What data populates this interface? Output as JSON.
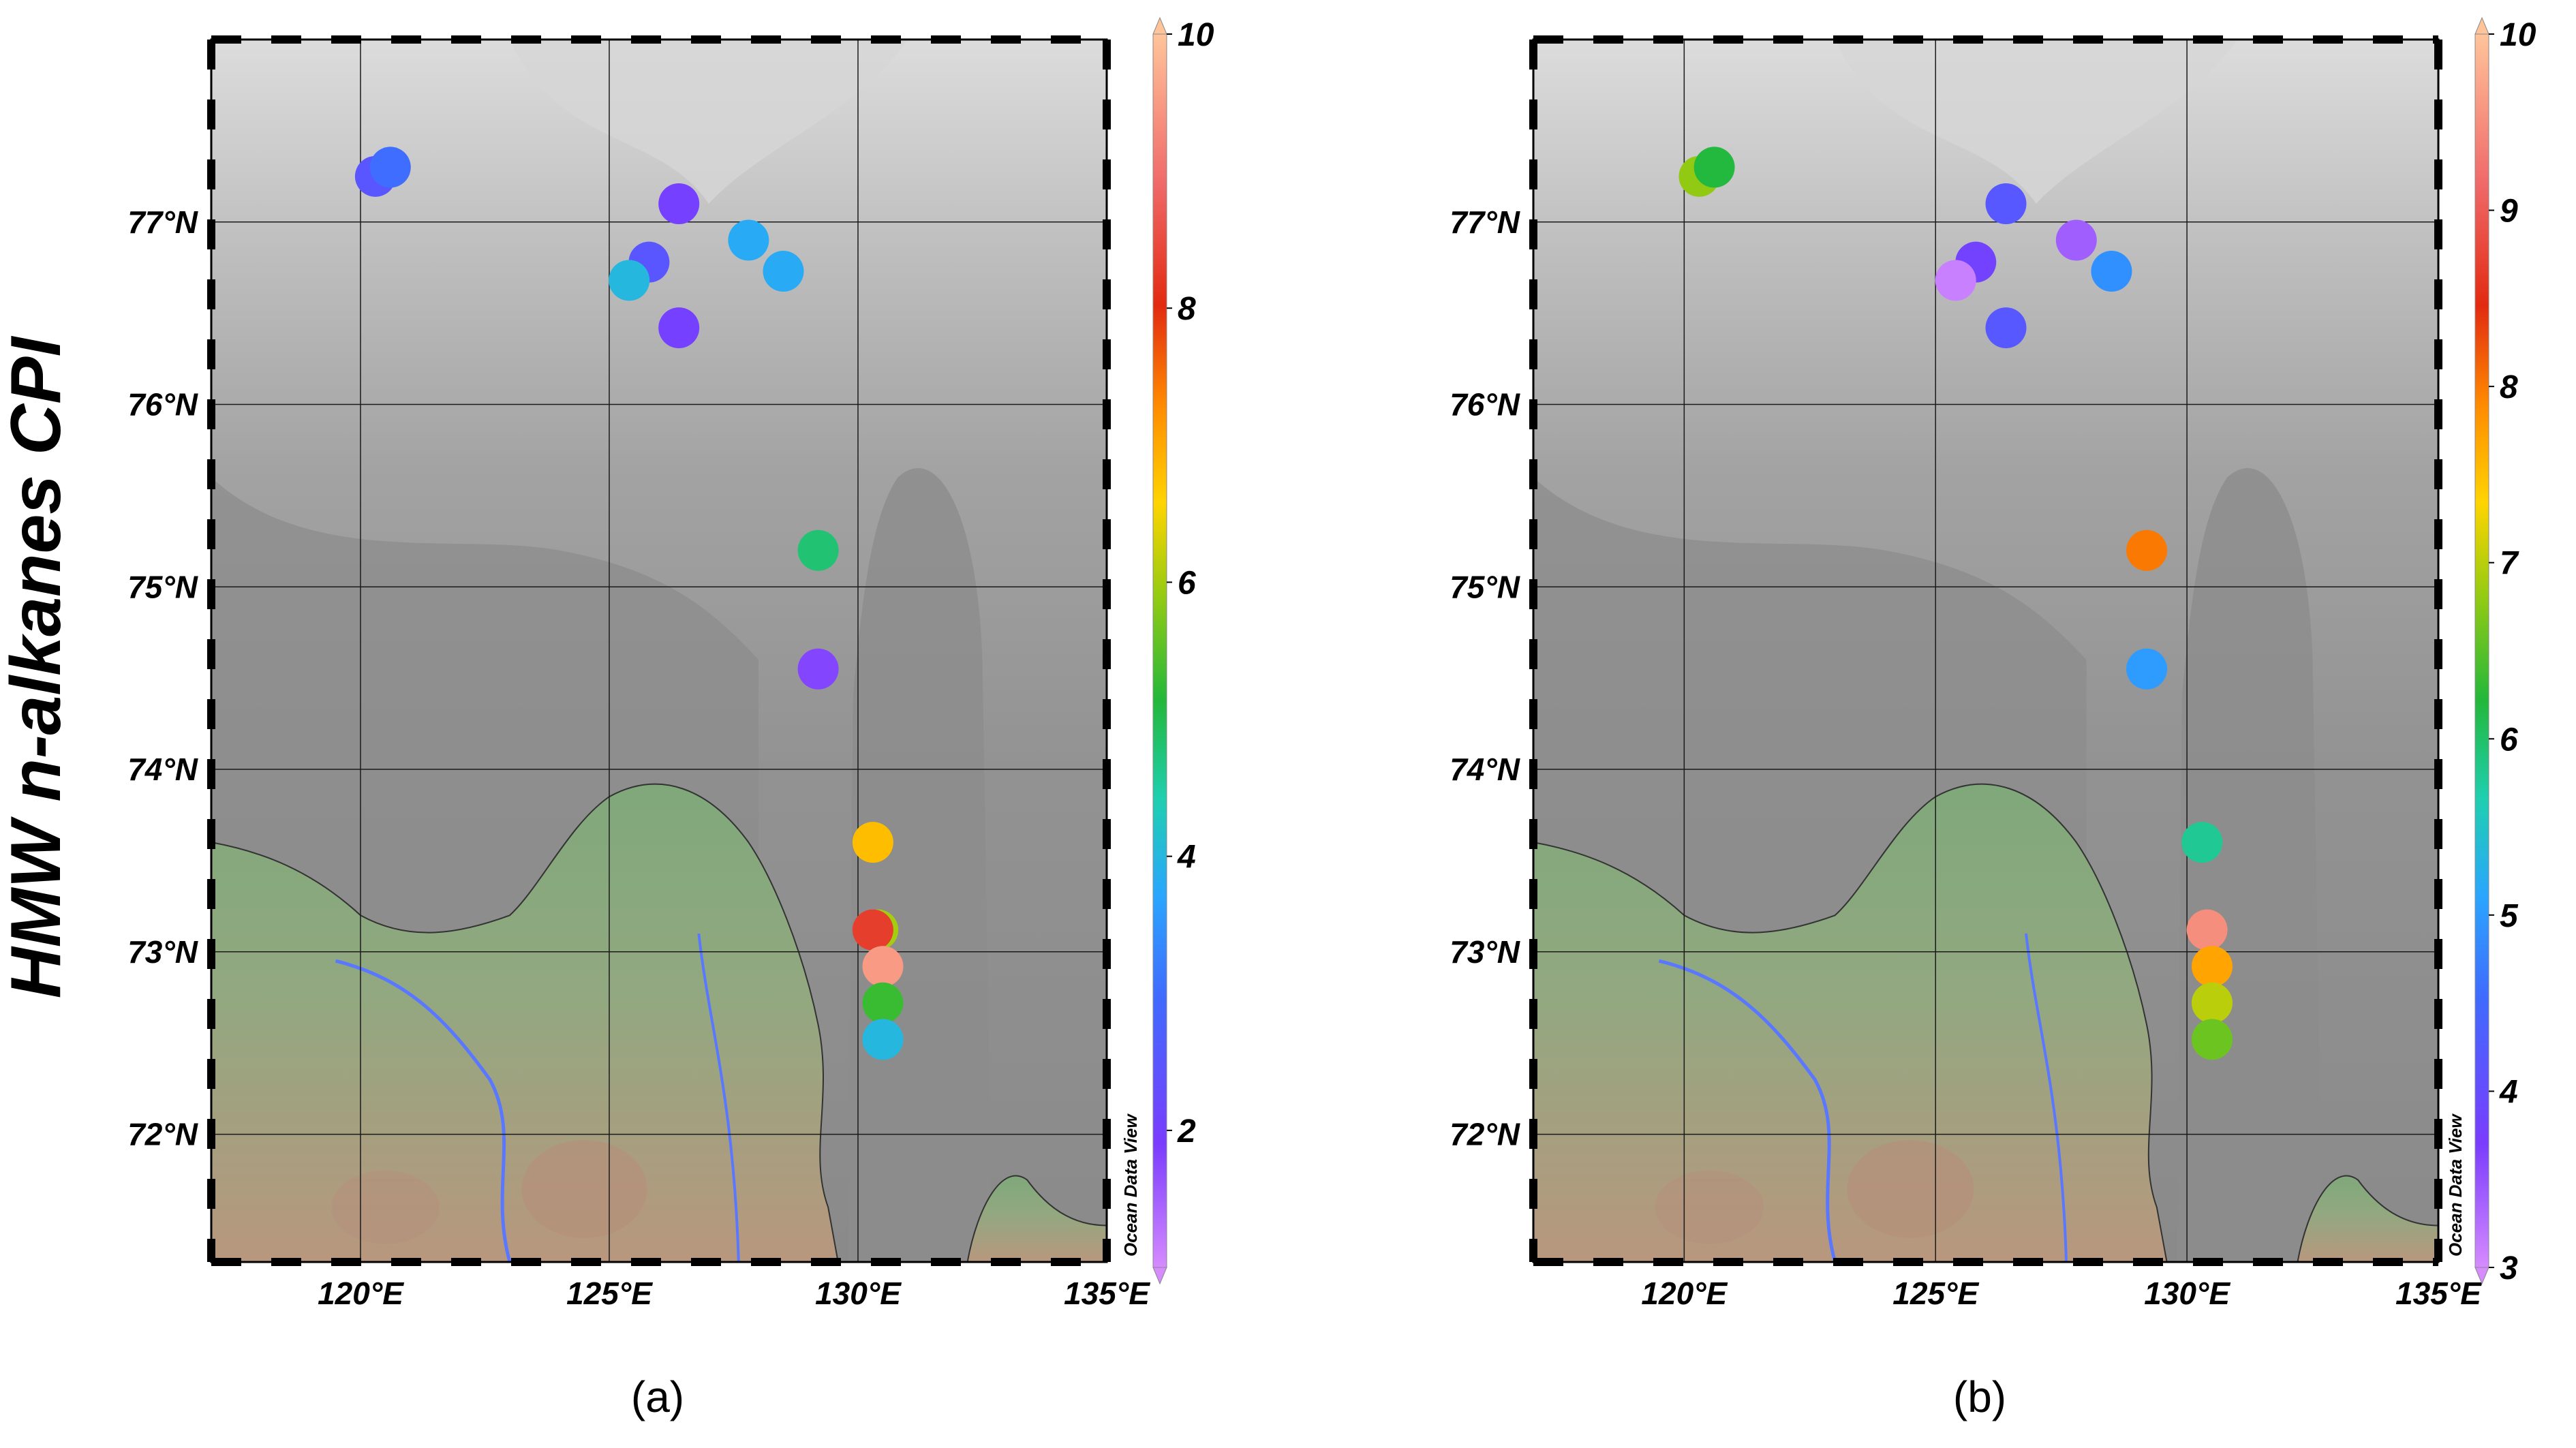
{
  "figure": {
    "y_title": "HMW n-alkanes CPI",
    "odv_label": "Ocean Data View"
  },
  "colors": {
    "land_low": "#7fa87a",
    "land_high": "#b5907a",
    "river": "#5a78ff",
    "sea_shelf": "#8c8c8c",
    "sea_deep": "#d6d6d6",
    "grid": "#1a1a1a"
  },
  "chart_data": [
    {
      "type": "scatter",
      "panel_label": "(a)",
      "x_range": [
        117,
        135
      ],
      "y_range": [
        71.3,
        78
      ],
      "x_ticks": [
        120,
        125,
        130,
        135
      ],
      "x_tick_labels": [
        "120°E",
        "125°E",
        "130°E",
        "135°E"
      ],
      "y_ticks": [
        72,
        73,
        74,
        75,
        76,
        77
      ],
      "y_tick_labels": [
        "72°N",
        "73°N",
        "74°N",
        "75°N",
        "76°N",
        "77°N"
      ],
      "colorbar": {
        "min": 1,
        "max": 10,
        "ticks": [
          2,
          4,
          6,
          8,
          10
        ],
        "tick_labels": [
          "2",
          "4",
          "6",
          "8",
          "10"
        ]
      },
      "points": [
        {
          "lon": 120.3,
          "lat": 77.25,
          "value": 2.5
        },
        {
          "lon": 120.6,
          "lat": 77.3,
          "value": 3.0
        },
        {
          "lon": 126.4,
          "lat": 77.1,
          "value": 2.0
        },
        {
          "lon": 125.8,
          "lat": 76.78,
          "value": 2.5
        },
        {
          "lon": 125.4,
          "lat": 76.68,
          "value": 4.0
        },
        {
          "lon": 127.8,
          "lat": 76.9,
          "value": 3.8
        },
        {
          "lon": 128.5,
          "lat": 76.73,
          "value": 3.8
        },
        {
          "lon": 126.4,
          "lat": 76.42,
          "value": 2.0
        },
        {
          "lon": 129.2,
          "lat": 75.2,
          "value": 4.8
        },
        {
          "lon": 129.2,
          "lat": 74.55,
          "value": 1.8
        },
        {
          "lon": 130.3,
          "lat": 73.6,
          "value": 6.8
        },
        {
          "lon": 130.4,
          "lat": 73.12,
          "value": 6.0
        },
        {
          "lon": 130.3,
          "lat": 73.12,
          "value": 8.3
        },
        {
          "lon": 130.5,
          "lat": 72.92,
          "value": 9.5
        },
        {
          "lon": 130.5,
          "lat": 72.72,
          "value": 5.3
        },
        {
          "lon": 130.5,
          "lat": 72.52,
          "value": 4.0
        }
      ]
    },
    {
      "type": "scatter",
      "panel_label": "(b)",
      "x_range": [
        117,
        135
      ],
      "y_range": [
        71.3,
        78
      ],
      "x_ticks": [
        120,
        125,
        130,
        135
      ],
      "x_tick_labels": [
        "120°E",
        "125°E",
        "130°E",
        "135°E"
      ],
      "y_ticks": [
        72,
        73,
        74,
        75,
        76,
        77
      ],
      "y_tick_labels": [
        "72°N",
        "73°N",
        "74°N",
        "75°N",
        "76°N",
        "77°N"
      ],
      "colorbar": {
        "min": 3,
        "max": 10,
        "ticks": [
          3,
          4,
          5,
          6,
          7,
          8,
          9,
          10
        ],
        "tick_labels": [
          "3",
          "4",
          "5",
          "6",
          "7",
          "8",
          "9",
          "10"
        ]
      },
      "points": [
        {
          "lon": 120.3,
          "lat": 77.25,
          "value": 6.8
        },
        {
          "lon": 120.6,
          "lat": 77.3,
          "value": 6.2
        },
        {
          "lon": 126.4,
          "lat": 77.1,
          "value": 4.2
        },
        {
          "lon": 125.8,
          "lat": 76.78,
          "value": 3.8
        },
        {
          "lon": 127.8,
          "lat": 76.9,
          "value": 3.4
        },
        {
          "lon": 125.4,
          "lat": 76.68,
          "value": 3.1
        },
        {
          "lon": 128.5,
          "lat": 76.73,
          "value": 4.9
        },
        {
          "lon": 126.4,
          "lat": 76.42,
          "value": 4.2
        },
        {
          "lon": 129.2,
          "lat": 75.2,
          "value": 8.0
        },
        {
          "lon": 129.2,
          "lat": 74.55,
          "value": 5.0
        },
        {
          "lon": 130.3,
          "lat": 73.6,
          "value": 5.8
        },
        {
          "lon": 130.4,
          "lat": 73.12,
          "value": 9.5
        },
        {
          "lon": 130.5,
          "lat": 72.92,
          "value": 7.7
        },
        {
          "lon": 130.5,
          "lat": 72.72,
          "value": 7.0
        },
        {
          "lon": 130.5,
          "lat": 72.52,
          "value": 6.6
        }
      ]
    }
  ]
}
